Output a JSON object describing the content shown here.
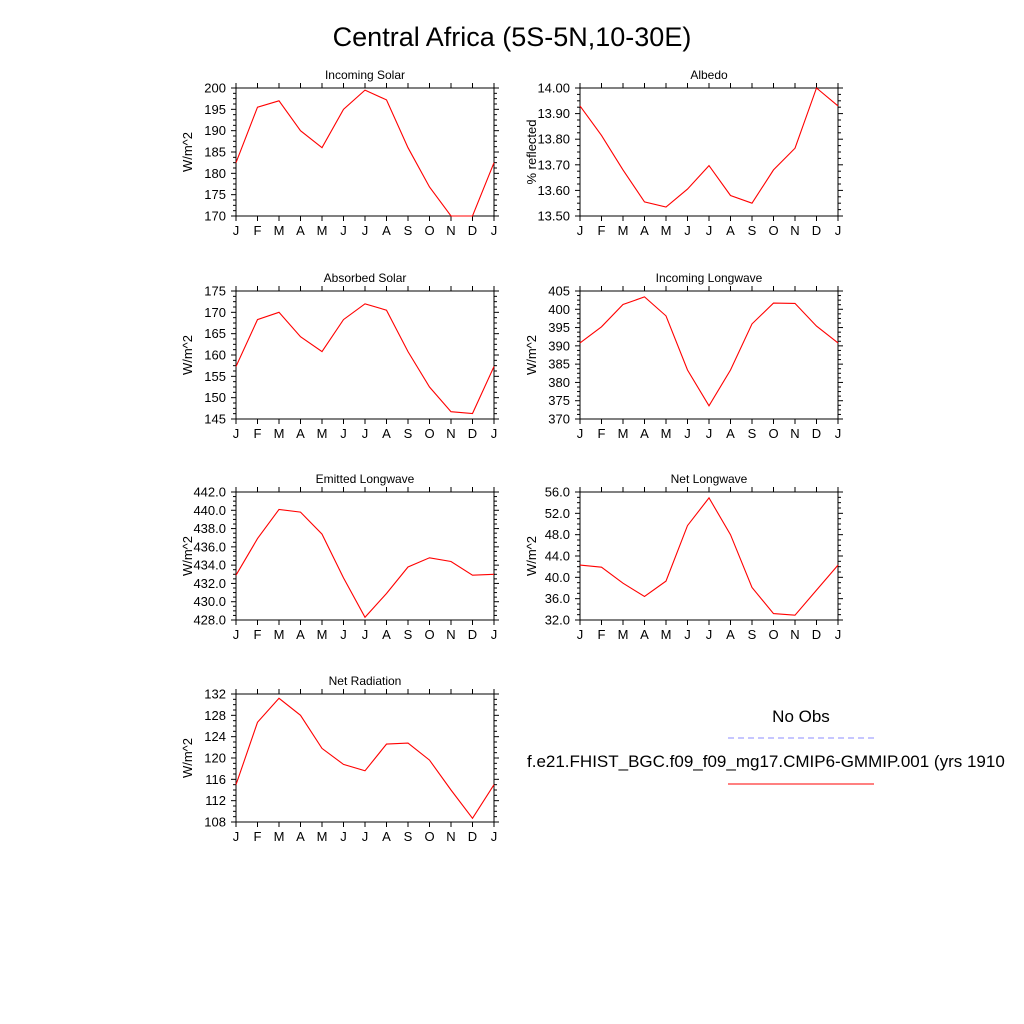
{
  "figure": {
    "title": "Central Africa (5S-5N,10-30E)"
  },
  "legend": {
    "obs_label": "No Obs",
    "obs_color": "#8c8cff",
    "model_label": "f.e21.FHIST_BGC.f09_f09_mg17.CMIP6-GMMIP.001 (yrs 1910",
    "model_color": "#ff0000"
  },
  "chart_data": [
    {
      "type": "line",
      "title": "Incoming Solar",
      "ylabel": "W/m^2",
      "x": [
        "J",
        "F",
        "M",
        "A",
        "M",
        "J",
        "J",
        "A",
        "S",
        "O",
        "N",
        "D",
        "J"
      ],
      "ylim": [
        170,
        200
      ],
      "yticks": [
        "170",
        "175",
        "180",
        "185",
        "190",
        "195",
        "200"
      ],
      "grid": false,
      "series": [
        {
          "values": [
            182.5,
            195.5,
            197.0,
            190.0,
            186.0,
            195.0,
            199.5,
            197.2,
            186.0,
            176.8,
            170.0,
            170.0,
            182.5
          ]
        }
      ]
    },
    {
      "type": "line",
      "title": "Albedo",
      "ylabel": "% reflected",
      "x": [
        "J",
        "F",
        "M",
        "A",
        "M",
        "J",
        "J",
        "A",
        "S",
        "O",
        "N",
        "D",
        "J"
      ],
      "ylim": [
        13.5,
        14.0
      ],
      "yticks": [
        "13.50",
        "13.60",
        "13.70",
        "13.80",
        "13.90",
        "14.00"
      ],
      "grid": false,
      "series": [
        {
          "values": [
            13.93,
            13.815,
            13.68,
            13.555,
            13.535,
            13.605,
            13.697,
            13.58,
            13.55,
            13.68,
            13.765,
            14.0,
            13.93
          ]
        }
      ]
    },
    {
      "type": "line",
      "title": "Absorbed Solar",
      "ylabel": "W/m^2",
      "x": [
        "J",
        "F",
        "M",
        "A",
        "M",
        "J",
        "J",
        "A",
        "S",
        "O",
        "N",
        "D",
        "J"
      ],
      "ylim": [
        145,
        175
      ],
      "yticks": [
        "145",
        "150",
        "155",
        "160",
        "165",
        "170",
        "175"
      ],
      "grid": false,
      "series": [
        {
          "values": [
            157.3,
            168.3,
            170.0,
            164.3,
            160.8,
            168.3,
            172.0,
            170.5,
            160.8,
            152.5,
            146.7,
            146.3,
            157.3
          ]
        }
      ]
    },
    {
      "type": "line",
      "title": "Incoming Longwave",
      "ylabel": "W/m^2",
      "x": [
        "J",
        "F",
        "M",
        "A",
        "M",
        "J",
        "J",
        "A",
        "S",
        "O",
        "N",
        "D",
        "J"
      ],
      "ylim": [
        370,
        405
      ],
      "yticks": [
        "370",
        "375",
        "380",
        "385",
        "390",
        "395",
        "400",
        "405"
      ],
      "grid": false,
      "series": [
        {
          "values": [
            390.8,
            395.2,
            401.3,
            403.4,
            398.2,
            383.4,
            373.6,
            383.4,
            396.0,
            401.7,
            401.6,
            395.4,
            390.8
          ]
        }
      ]
    },
    {
      "type": "line",
      "title": "Emitted Longwave",
      "ylabel": "W/m^2",
      "x": [
        "J",
        "F",
        "M",
        "A",
        "M",
        "J",
        "J",
        "A",
        "S",
        "O",
        "N",
        "D",
        "J"
      ],
      "ylim": [
        428,
        442
      ],
      "yticks": [
        "428.0",
        "430.0",
        "432.0",
        "434.0",
        "436.0",
        "438.0",
        "440.0",
        "442.0"
      ],
      "grid": false,
      "series": [
        {
          "values": [
            432.9,
            436.9,
            440.1,
            439.8,
            437.4,
            432.6,
            428.3,
            430.9,
            433.8,
            434.8,
            434.4,
            432.9,
            433.0
          ]
        }
      ]
    },
    {
      "type": "line",
      "title": "Net Longwave",
      "ylabel": "W/m^2",
      "x": [
        "J",
        "F",
        "M",
        "A",
        "M",
        "J",
        "J",
        "A",
        "S",
        "O",
        "N",
        "D",
        "J"
      ],
      "ylim": [
        32,
        56
      ],
      "yticks": [
        "32.0",
        "36.0",
        "40.0",
        "44.0",
        "48.0",
        "52.0",
        "56.0"
      ],
      "grid": false,
      "series": [
        {
          "values": [
            42.3,
            41.9,
            38.9,
            36.4,
            39.3,
            49.7,
            54.9,
            48.0,
            38.1,
            33.2,
            32.9,
            37.6,
            42.3
          ]
        }
      ]
    },
    {
      "type": "line",
      "title": "Net Radiation",
      "ylabel": "W/m^2",
      "x": [
        "J",
        "F",
        "M",
        "A",
        "M",
        "J",
        "J",
        "A",
        "S",
        "O",
        "N",
        "D",
        "J"
      ],
      "ylim": [
        108,
        132
      ],
      "yticks": [
        "108",
        "112",
        "116",
        "120",
        "124",
        "128",
        "132"
      ],
      "grid": false,
      "series": [
        {
          "values": [
            115.0,
            126.7,
            131.2,
            128.0,
            121.8,
            118.8,
            117.6,
            122.6,
            122.8,
            119.6,
            114.0,
            108.7,
            115.0
          ]
        }
      ]
    }
  ]
}
